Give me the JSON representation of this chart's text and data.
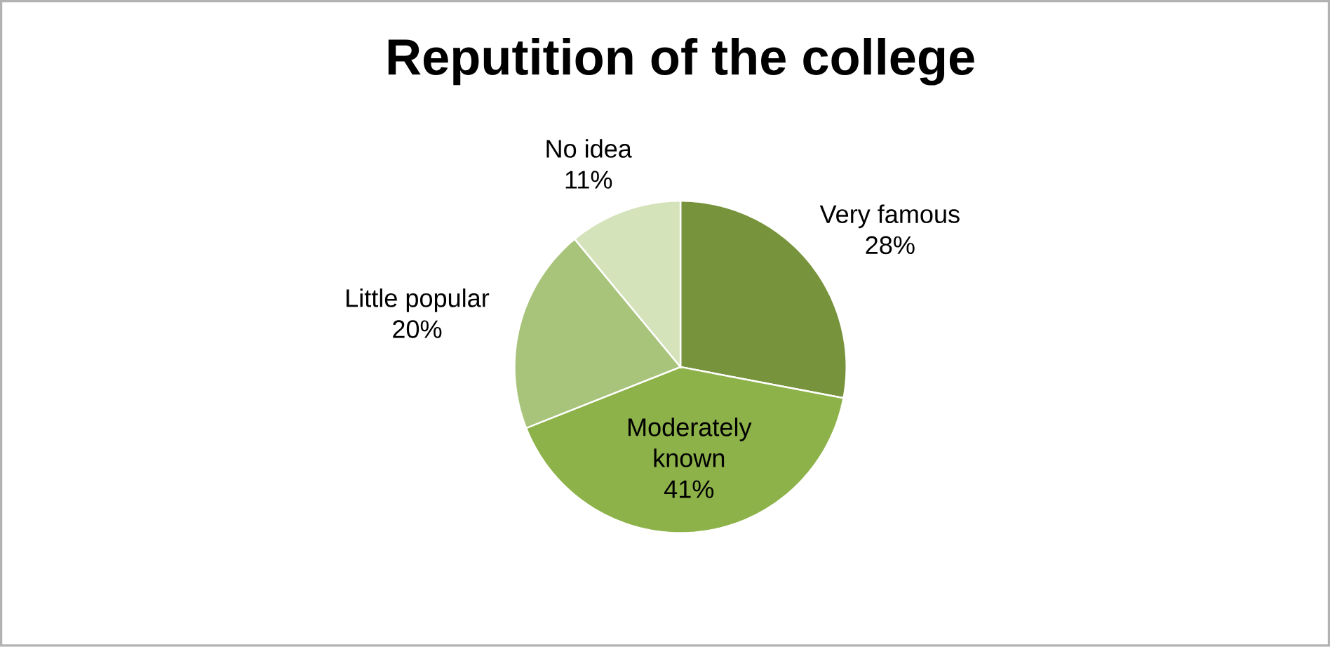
{
  "chart_data": {
    "type": "pie",
    "title": "Reputition of the college",
    "categories": [
      "Very famous",
      "Moderately known",
      "Little popular",
      "No idea"
    ],
    "values": [
      28,
      41,
      20,
      11
    ],
    "value_labels": [
      "28%",
      "41%",
      "20%",
      "11%"
    ],
    "colors": [
      "#77933c",
      "#8db249",
      "#a7c47a",
      "#d5e3bb"
    ],
    "legend": false
  }
}
